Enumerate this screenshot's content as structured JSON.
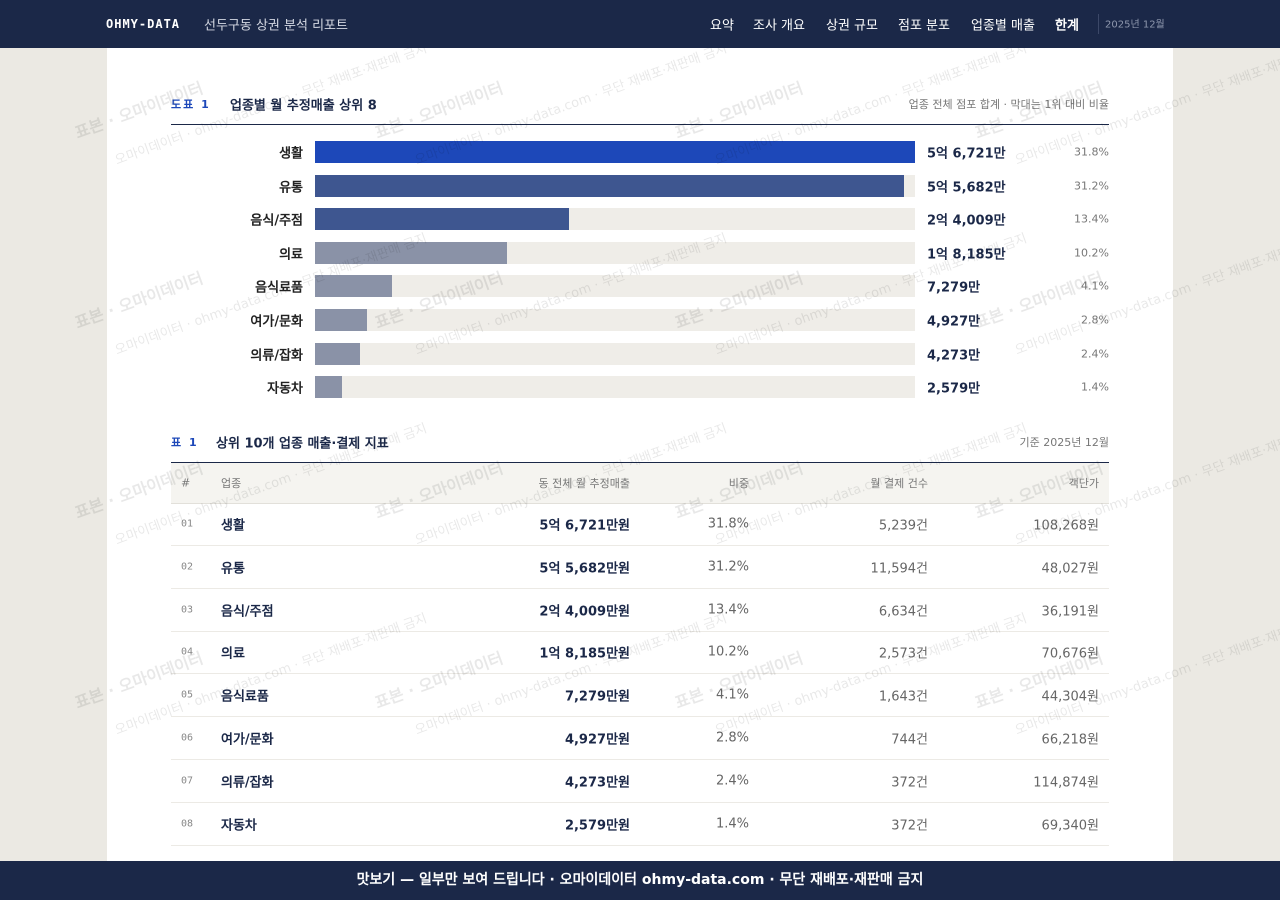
{
  "nav": {
    "logo": "OHMY-DATA",
    "title": "선두구동 상권 분석 리포트",
    "links": [
      "요약",
      "조사 개요",
      "상권 규모",
      "점포 분포",
      "업종별 매출",
      "한계"
    ],
    "date": "2025년 12월"
  },
  "chart_data": {
    "type": "hbar",
    "figure_label": "도표 1",
    "title": "업종별 월 추정매출 상위 8",
    "note": "업종 전체 점포 합계 · 막대는 1위 대비 비율",
    "categories": [
      "생활",
      "유통",
      "음식/주점",
      "의료",
      "음식료품",
      "여가/문화",
      "의류/잡화",
      "자동차"
    ],
    "values": [
      567210000,
      556820000,
      240090000,
      181850000,
      72790000,
      49270000,
      42730000,
      25790000
    ],
    "value_labels": [
      "5억 6,721만",
      "5억 5,682만",
      "2억 4,009만",
      "1억 8,185만",
      "7,279만",
      "4,927만",
      "4,273만",
      "2,579만"
    ],
    "share_labels": [
      "31.8%",
      "31.2%",
      "13.4%",
      "10.2%",
      "4.1%",
      "2.8%",
      "2.4%",
      "1.4%"
    ],
    "colors": [
      "#1d48b9",
      "#3e5690",
      "#3e5690",
      "#8a92a7",
      "#8a92a7",
      "#8a92a7",
      "#8a92a7",
      "#8a92a7"
    ],
    "xlim": [
      0,
      567210000
    ]
  },
  "table": {
    "label": "표 1",
    "title": "상위 10개 업종 매출·결제 지표",
    "note": "기준 2025년 12월",
    "columns": [
      "#",
      "업종",
      "동 전체 월 추정매출",
      "비중",
      "월 결제 건수",
      "객단가"
    ],
    "rows": [
      [
        "01",
        "생활",
        "5억 6,721만원",
        "31.8%",
        "5,239건",
        "108,268원"
      ],
      [
        "02",
        "유통",
        "5억 5,682만원",
        "31.2%",
        "11,594건",
        "48,027원"
      ],
      [
        "03",
        "음식/주점",
        "2억 4,009만원",
        "13.4%",
        "6,634건",
        "36,191원"
      ],
      [
        "04",
        "의료",
        "1억 8,185만원",
        "10.2%",
        "2,573건",
        "70,676원"
      ],
      [
        "05",
        "음식료품",
        "7,279만원",
        "4.1%",
        "1,643건",
        "44,304원"
      ],
      [
        "06",
        "여가/문화",
        "4,927만원",
        "2.8%",
        "744건",
        "66,218원"
      ],
      [
        "07",
        "의류/잡화",
        "4,273만원",
        "2.4%",
        "372건",
        "114,874원"
      ],
      [
        "08",
        "자동차",
        "2,579만원",
        "1.4%",
        "372건",
        "69,340원"
      ]
    ]
  },
  "watermarks": [
    "표본 · 오마이데이터",
    "오마이데이터 · ohmy-data.com · 무단 재배포·재판매 금지"
  ],
  "footer": "맛보기 — 일부만 보여 드립니다 · 오마이데이터 ohmy-data.com · 무단 재배포·재판매 금지"
}
